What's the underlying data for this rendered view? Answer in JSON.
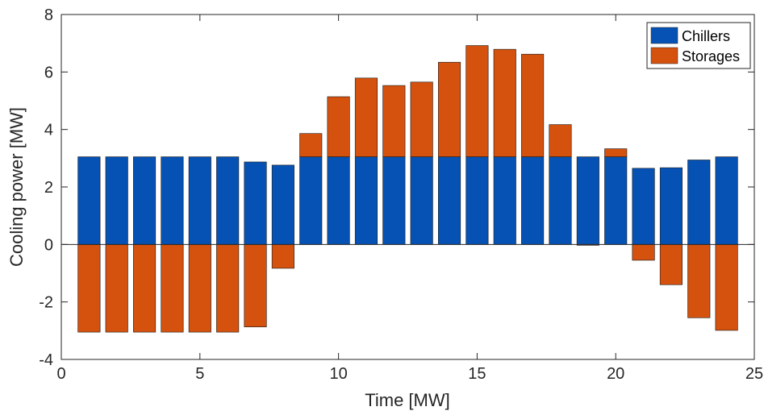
{
  "chart_data": {
    "type": "bar",
    "stacked": true,
    "title": "",
    "xlabel": "Time [MW]",
    "ylabel": "Cooling power [MW]",
    "xlim": [
      0,
      25
    ],
    "ylim": [
      -4,
      8
    ],
    "xticks": [
      0,
      5,
      10,
      15,
      20,
      25
    ],
    "yticks": [
      -4,
      -2,
      0,
      2,
      4,
      6,
      8
    ],
    "grid": false,
    "legend_position": "top-right",
    "x": [
      1,
      2,
      3,
      4,
      5,
      6,
      7,
      8,
      9,
      10,
      11,
      12,
      13,
      14,
      15,
      16,
      17,
      18,
      19,
      20,
      21,
      22,
      23,
      24
    ],
    "series": [
      {
        "name": "Chillers",
        "color": "#0652b4",
        "values": [
          3.05,
          3.05,
          3.05,
          3.05,
          3.05,
          3.05,
          2.87,
          2.76,
          3.05,
          3.05,
          3.05,
          3.05,
          3.05,
          3.05,
          3.05,
          3.05,
          3.05,
          3.05,
          3.05,
          3.05,
          2.65,
          2.67,
          2.94,
          3.05
        ]
      },
      {
        "name": "Storages",
        "color": "#d4510e",
        "values": [
          -3.05,
          -3.05,
          -3.05,
          -3.05,
          -3.05,
          -3.05,
          -2.87,
          -0.83,
          0.81,
          2.09,
          2.74,
          2.48,
          2.6,
          3.29,
          3.87,
          3.74,
          3.57,
          1.12,
          -0.03,
          0.28,
          -0.55,
          -1.4,
          -2.55,
          -2.99
        ]
      }
    ]
  }
}
